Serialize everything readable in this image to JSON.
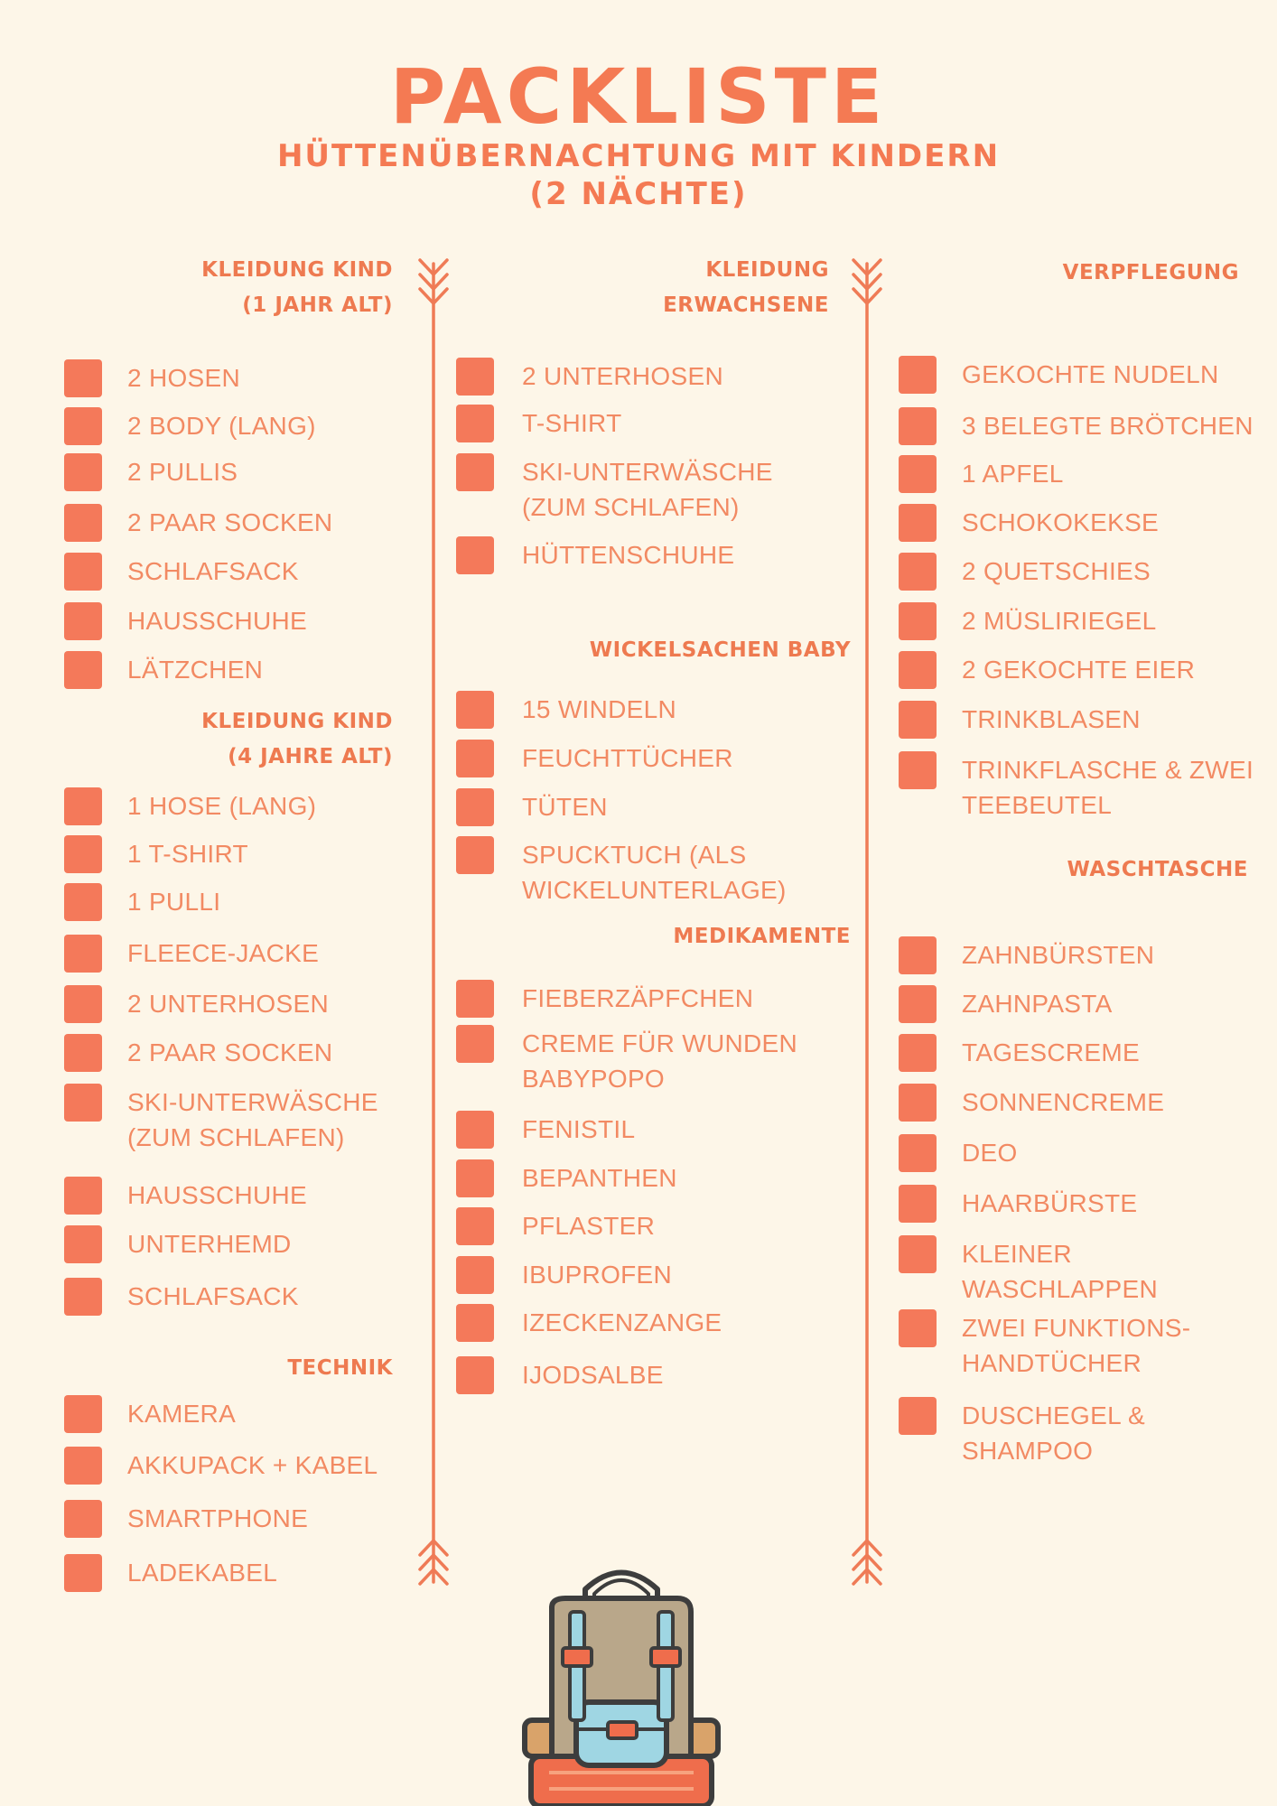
{
  "header": {
    "title": "PACKLISTE",
    "subtitle_line1": "HÜTTENÜBERNACHTUNG MIT KINDERN",
    "subtitle_line2": "(2 NÄCHTE)"
  },
  "colors": {
    "accent": "#f4795a",
    "background": "#fdf6e8",
    "text": "#f28a63"
  },
  "col1": {
    "kid1": {
      "heading_line1": "KLEIDUNG KIND",
      "heading_line2": "(1 JAHR ALT)",
      "items": [
        "2 HOSEN",
        "2 BODY (LANG)",
        "2 PULLIS",
        "2 PAAR SOCKEN",
        "SCHLAFSACK",
        "HAUSSCHUHE",
        "LÄTZCHEN"
      ]
    },
    "kid4": {
      "heading_line1": "KLEIDUNG KIND",
      "heading_line2": "(4 JAHRE ALT)",
      "items": [
        "1 HOSE (LANG)",
        "1 T-SHIRT",
        "1 PULLI",
        "FLEECE-JACKE",
        "2 UNTERHOSEN",
        "2 PAAR SOCKEN",
        "SKI-UNTERWÄSCHE\n(ZUM SCHLAFEN)",
        "HAUSSCHUHE",
        "UNTERHEMD",
        "SCHLAFSACK"
      ]
    },
    "technik": {
      "heading": "TECHNIK",
      "items": [
        "KAMERA",
        "AKKUPACK + KABEL",
        "SMARTPHONE",
        "LADEKABEL"
      ]
    }
  },
  "col2": {
    "adults": {
      "heading_line1": "KLEIDUNG",
      "heading_line2": "ERWACHSENE",
      "items": [
        "2 UNTERHOSEN",
        "T-SHIRT",
        "SKI-UNTERWÄSCHE\n(ZUM SCHLAFEN)",
        "HÜTTENSCHUHE"
      ]
    },
    "wickel": {
      "heading": "WICKELSACHEN BABY",
      "items": [
        "15 WINDELN",
        "FEUCHTTÜCHER",
        "TÜTEN",
        "SPUCKTUCH (ALS\nWICKELUNTERLAGE)"
      ]
    },
    "medikamente": {
      "heading": "MEDIKAMENTE",
      "items": [
        "FIEBERZÄPFCHEN",
        "CREME FÜR WUNDEN\nBABYPOPO",
        "FENISTIL",
        "BEPANTHEN",
        "PFLASTER",
        "IBUPROFEN",
        "IZECKENZANGE",
        "IJODSALBE"
      ]
    }
  },
  "col3": {
    "verpflegung": {
      "heading": "VERPFLEGUNG",
      "items": [
        "GEKOCHTE NUDELN",
        "3 BELEGTE BRÖTCHEN",
        "1 APFEL",
        "SCHOKOKEKSE",
        "2 QUETSCHIES",
        "2 MÜSLIRIEGEL",
        "2 GEKOCHTE EIER",
        "TRINKBLASEN",
        "TRINKFLASCHE & ZWEI\nTEEBEUTEL"
      ]
    },
    "waschtasche": {
      "heading": "WASCHTASCHE",
      "items": [
        "ZAHNBÜRSTEN",
        "ZAHNPASTA",
        "TAGESCREME",
        "SONNENCREME",
        "DEO",
        "HAARBÜRSTE",
        "KLEINER\nWASCHLAPPEN",
        "ZWEI  FUNKTIONS-\nHANDTÜCHER",
        "DUSCHEGEL &\nSHAMPOO"
      ]
    }
  }
}
